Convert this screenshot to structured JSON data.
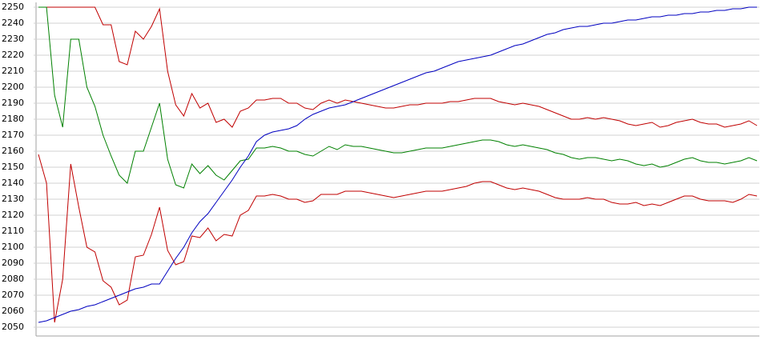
{
  "chart_data": {
    "type": "line",
    "ylim": [
      2050,
      2250
    ],
    "yticks": [
      2050,
      2060,
      2070,
      2080,
      2090,
      2100,
      2110,
      2120,
      2130,
      2140,
      2150,
      2160,
      2170,
      2180,
      2190,
      2200,
      2210,
      2220,
      2230,
      2240,
      2250
    ],
    "grid": true,
    "series": [
      {
        "color": "#c00000",
        "values": [
          2250,
          2250,
          2250,
          2250,
          2250,
          2250,
          2250,
          2250,
          2239,
          2239,
          2216,
          2214,
          2235,
          2230,
          2238,
          2249,
          2210,
          2189,
          2182,
          2196,
          2187,
          2190,
          2178,
          2180,
          2175,
          2185,
          2187,
          2192,
          2192,
          2193,
          2193,
          2190,
          2190,
          2187,
          2186,
          2190,
          2192,
          2190,
          2192,
          2191,
          2190,
          2189,
          2188,
          2187,
          2187,
          2188,
          2189,
          2189,
          2190,
          2190,
          2190,
          2191,
          2191,
          2192,
          2193,
          2193,
          2193,
          2191,
          2190,
          2189,
          2190,
          2189,
          2188,
          2186,
          2184,
          2182,
          2180,
          2180,
          2181,
          2180,
          2181,
          2180,
          2179,
          2177,
          2176,
          2177,
          2178,
          2175,
          2176,
          2178,
          2179,
          2180,
          2178,
          2177,
          2177,
          2175,
          2176,
          2177,
          2179,
          2176
        ]
      },
      {
        "color": "#008000",
        "values": [
          2250,
          2250,
          2195,
          2175,
          2230,
          2230,
          2200,
          2188,
          2170,
          2157,
          2145,
          2140,
          2160,
          2160,
          2175,
          2190,
          2155,
          2139,
          2137,
          2152,
          2146,
          2151,
          2145,
          2142,
          2148,
          2154,
          2155,
          2162,
          2162,
          2163,
          2162,
          2160,
          2160,
          2158,
          2157,
          2160,
          2163,
          2161,
          2164,
          2163,
          2163,
          2162,
          2161,
          2160,
          2159,
          2159,
          2160,
          2161,
          2162,
          2162,
          2162,
          2163,
          2164,
          2165,
          2166,
          2167,
          2167,
          2166,
          2164,
          2163,
          2164,
          2163,
          2162,
          2161,
          2159,
          2158,
          2156,
          2155,
          2156,
          2156,
          2155,
          2154,
          2155,
          2154,
          2152,
          2151,
          2152,
          2150,
          2151,
          2153,
          2155,
          2156,
          2154,
          2153,
          2153,
          2152,
          2153,
          2154,
          2156,
          2154
        ]
      },
      {
        "color": "#c00000",
        "values": [
          2158,
          2140,
          2053,
          2080,
          2152,
          2125,
          2100,
          2097,
          2079,
          2075,
          2064,
          2067,
          2094,
          2095,
          2108,
          2125,
          2098,
          2089,
          2091,
          2107,
          2106,
          2112,
          2104,
          2108,
          2107,
          2120,
          2123,
          2132,
          2132,
          2133,
          2132,
          2130,
          2130,
          2128,
          2129,
          2133,
          2133,
          2133,
          2135,
          2135,
          2135,
          2134,
          2133,
          2132,
          2131,
          2132,
          2133,
          2134,
          2135,
          2135,
          2135,
          2136,
          2137,
          2138,
          2140,
          2141,
          2141,
          2139,
          2137,
          2136,
          2137,
          2136,
          2135,
          2133,
          2131,
          2130,
          2130,
          2130,
          2131,
          2130,
          2130,
          2128,
          2127,
          2127,
          2128,
          2126,
          2127,
          2126,
          2128,
          2130,
          2132,
          2132,
          2130,
          2129,
          2129,
          2129,
          2128,
          2130,
          2133,
          2132
        ]
      },
      {
        "color": "#0000c0",
        "values": [
          2053,
          2054,
          2056,
          2058,
          2060,
          2061,
          2063,
          2064,
          2066,
          2068,
          2070,
          2072,
          2074,
          2075,
          2077,
          2077,
          2085,
          2093,
          2100,
          2109,
          2116,
          2121,
          2128,
          2135,
          2142,
          2150,
          2157,
          2166,
          2170,
          2172,
          2173,
          2174,
          2176,
          2180,
          2183,
          2185,
          2187,
          2188,
          2189,
          2191,
          2193,
          2195,
          2197,
          2199,
          2201,
          2203,
          2205,
          2207,
          2209,
          2210,
          2212,
          2214,
          2216,
          2217,
          2218,
          2219,
          2220,
          2222,
          2224,
          2226,
          2227,
          2229,
          2231,
          2233,
          2234,
          2236,
          2237,
          2238,
          2238,
          2239,
          2240,
          2240,
          2241,
          2242,
          2242,
          2243,
          2244,
          2244,
          2245,
          2245,
          2246,
          2246,
          2247,
          2247,
          2248,
          2248,
          2249,
          2249,
          2250,
          2250
        ]
      }
    ]
  }
}
